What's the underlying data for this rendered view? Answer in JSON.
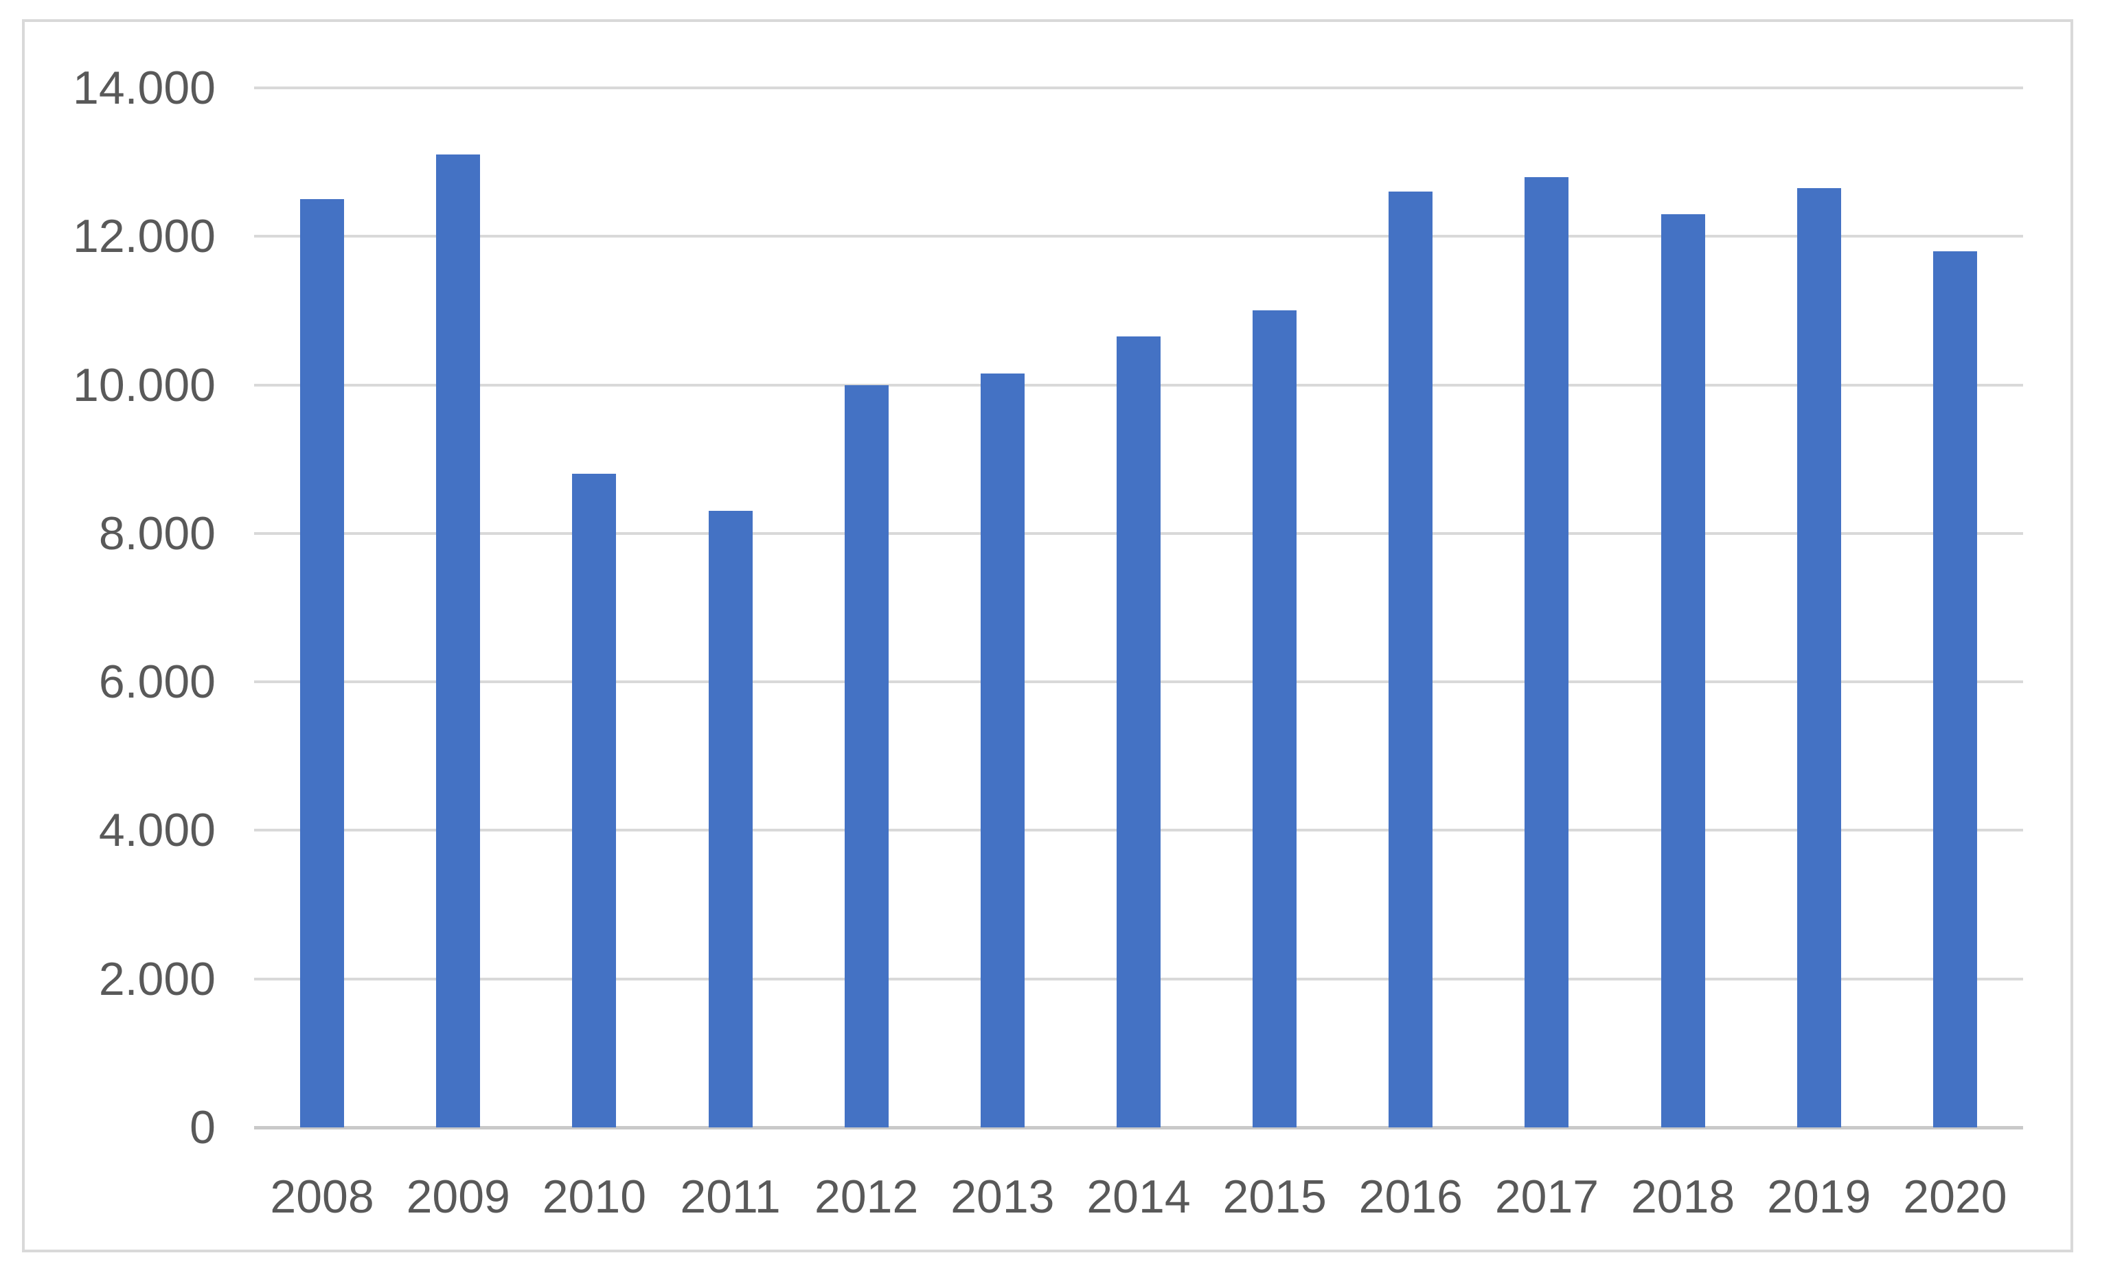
{
  "chart_data": {
    "type": "bar",
    "title": "",
    "xlabel": "",
    "ylabel": "",
    "categories": [
      "2008",
      "2009",
      "2010",
      "2011",
      "2012",
      "2013",
      "2014",
      "2015",
      "2016",
      "2017",
      "2018",
      "2019",
      "2020"
    ],
    "values": [
      12500,
      13100,
      8800,
      8300,
      10000,
      10150,
      10650,
      11000,
      12600,
      12800,
      12300,
      12650,
      11800
    ],
    "ylim": [
      0,
      14000
    ],
    "y_ticks": [
      {
        "value": 0,
        "label": "0"
      },
      {
        "value": 2000,
        "label": "2.000"
      },
      {
        "value": 4000,
        "label": "4.000"
      },
      {
        "value": 6000,
        "label": "6.000"
      },
      {
        "value": 8000,
        "label": "8.000"
      },
      {
        "value": 10000,
        "label": "10.000"
      },
      {
        "value": 12000,
        "label": "12.000"
      },
      {
        "value": 14000,
        "label": "14.000"
      }
    ],
    "grid": true,
    "legend_position": "none",
    "colors": {
      "bar": "#4472c4",
      "gridline": "#d9d9d9",
      "axis_line": "#c9c9c9",
      "tick_label": "#595959",
      "frame_border": "#d9d9d9",
      "background": "#ffffff"
    }
  }
}
